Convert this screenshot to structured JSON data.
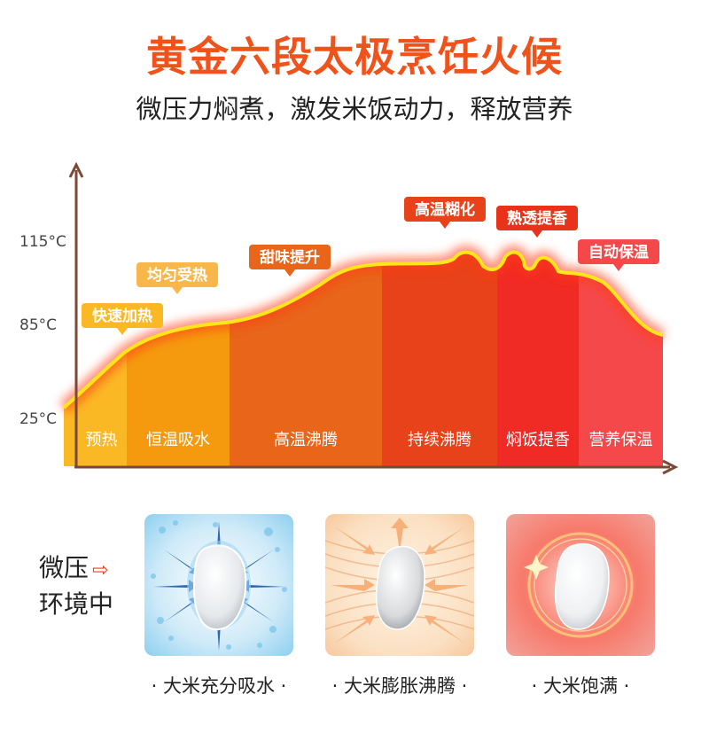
{
  "header": {
    "title": "黄金六段太极烹饪火候",
    "subtitle": "微压力焖煮，激发米饭动力，释放营养"
  },
  "chart_data": {
    "type": "area",
    "title": "",
    "ylabel": "",
    "y_ticks": [
      "115°C",
      "85°C",
      "25°C"
    ],
    "stages": [
      {
        "label": "预热",
        "color": "#fbb825"
      },
      {
        "label": "恒温吸水",
        "color": "#f59a0f"
      },
      {
        "label": "高温沸腾",
        "color": "#e8651a"
      },
      {
        "label": "持续沸腾",
        "color": "#e8421a"
      },
      {
        "label": "焖饭提香",
        "color": "#f02a24"
      },
      {
        "label": "营养保温",
        "color": "#f5484a"
      }
    ],
    "callouts": [
      {
        "label": "快速加热",
        "color": "#fbb825"
      },
      {
        "label": "均匀受热",
        "color": "#f7b74a"
      },
      {
        "label": "甜味提升",
        "color": "#e8651a"
      },
      {
        "label": "高温糊化",
        "color": "#e8421a"
      },
      {
        "label": "熟透提香",
        "color": "#e8331a"
      },
      {
        "label": "自动保温",
        "color": "#f5484a"
      }
    ]
  },
  "micro": {
    "label_line1": "微压",
    "label_line2": "环境中",
    "arrow_icon": "arrow-right-icon"
  },
  "cards": [
    {
      "caption": "· 大米充分吸水 ·"
    },
    {
      "caption": "· 大米膨胀沸腾 ·"
    },
    {
      "caption": "· 大米饱满 ·"
    }
  ]
}
